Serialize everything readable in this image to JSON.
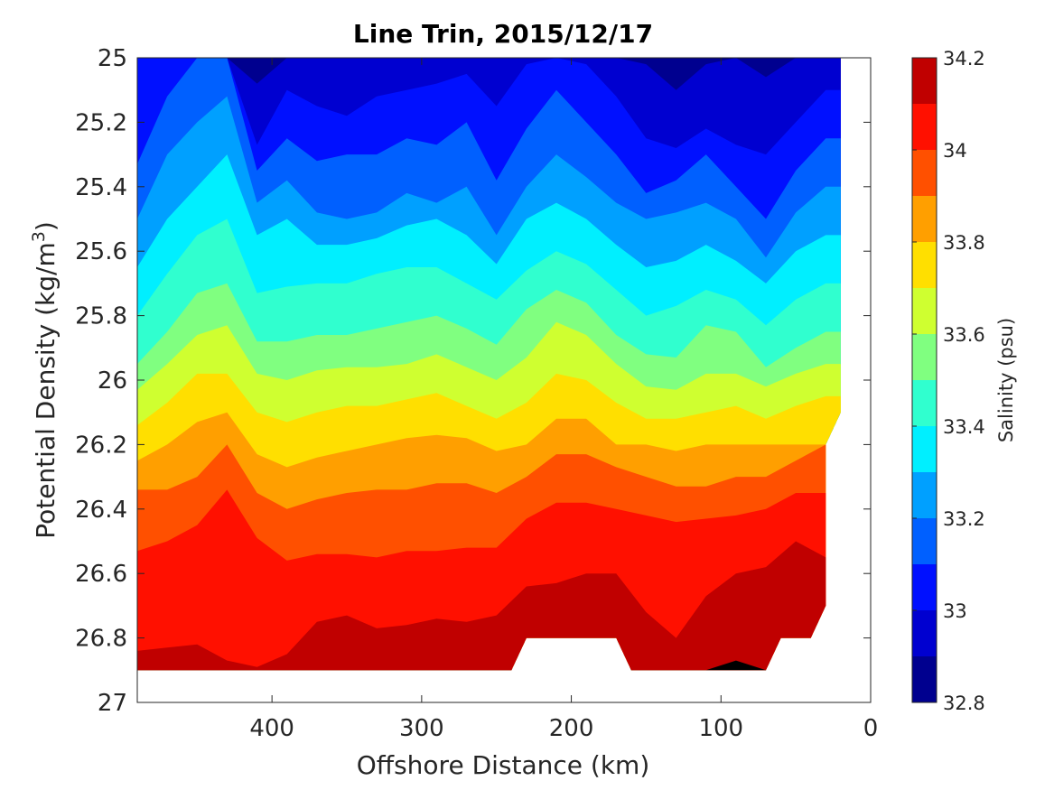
{
  "chart_data": {
    "type": "contour",
    "title": "Line Trin, 2015/12/17",
    "xlabel": "Offshore Distance (km)",
    "ylabel": "Potential Density (kg/m",
    "ylabel_sup": "3",
    "ylabel_close": ")",
    "x_reversed": true,
    "y_reversed": true,
    "xlim": [
      490,
      0
    ],
    "ylim": [
      25,
      27
    ],
    "xticks": [
      {
        "value": 400,
        "label": "400"
      },
      {
        "value": 300,
        "label": "300"
      },
      {
        "value": 200,
        "label": "200"
      },
      {
        "value": 100,
        "label": "100"
      },
      {
        "value": 0,
        "label": "0"
      }
    ],
    "yticks": [
      {
        "value": 25,
        "label": "25"
      },
      {
        "value": 25.2,
        "label": "25.2"
      },
      {
        "value": 25.4,
        "label": "25.4"
      },
      {
        "value": 25.6,
        "label": "25.6"
      },
      {
        "value": 25.8,
        "label": "25.8"
      },
      {
        "value": 26,
        "label": "26"
      },
      {
        "value": 26.2,
        "label": "26.2"
      },
      {
        "value": 26.4,
        "label": "26.4"
      },
      {
        "value": 26.6,
        "label": "26.6"
      },
      {
        "value": 26.8,
        "label": "26.8"
      },
      {
        "value": 27,
        "label": "27"
      }
    ],
    "colorbar": {
      "label": "Salinity (psu)",
      "range": [
        32.8,
        34.2
      ],
      "levels": [
        32.8,
        32.9,
        33.0,
        33.1,
        33.2,
        33.3,
        33.4,
        33.5,
        33.6,
        33.7,
        33.8,
        33.9,
        34.0,
        34.1,
        34.2
      ],
      "colors": [
        "#00008f",
        "#0000d0",
        "#0010ff",
        "#0060ff",
        "#00a0ff",
        "#00efff",
        "#30ffcf",
        "#80ff80",
        "#cfff30",
        "#ffdf00",
        "#ff9f00",
        "#ff5000",
        "#ff1000",
        "#c00000"
      ],
      "tick_labels": [
        {
          "value": 32.8,
          "label": "32.8"
        },
        {
          "value": 33.0,
          "label": "33"
        },
        {
          "value": 33.2,
          "label": "33.2"
        },
        {
          "value": 33.4,
          "label": "33.4"
        },
        {
          "value": 33.6,
          "label": "33.6"
        },
        {
          "value": 33.8,
          "label": "33.8"
        },
        {
          "value": 34.0,
          "label": "34"
        },
        {
          "value": 34.2,
          "label": "34.2"
        }
      ]
    },
    "data_extent": {
      "x_max": 490,
      "x_min": 20,
      "bottom": [
        [
          490,
          26.9
        ],
        [
          240,
          26.9
        ],
        [
          230,
          26.8
        ],
        [
          170,
          26.8
        ],
        [
          160,
          26.9
        ],
        [
          70,
          26.9
        ],
        [
          60,
          26.8
        ],
        [
          40,
          26.8
        ],
        [
          30,
          26.7
        ],
        [
          30,
          26.2
        ],
        [
          20,
          26.1
        ],
        [
          20,
          25.0
        ]
      ]
    },
    "x_nodes": [
      490,
      470,
      450,
      430,
      410,
      390,
      370,
      350,
      330,
      310,
      290,
      270,
      250,
      230,
      210,
      190,
      170,
      150,
      130,
      110,
      90,
      70,
      50,
      30,
      20
    ],
    "contours": [
      {
        "level": 32.9,
        "y": [
          25.0,
          25.0,
          25.0,
          25.0,
          25.08,
          25.0,
          25.0,
          25.0,
          25.0,
          25.0,
          25.0,
          25.0,
          25.0,
          25.0,
          25.0,
          25.0,
          25.0,
          25.02,
          25.1,
          25.02,
          25.0,
          25.06,
          25.0,
          25.0,
          25.0
        ]
      },
      {
        "level": 33.0,
        "y": [
          25.0,
          25.0,
          25.0,
          25.0,
          25.27,
          25.1,
          25.15,
          25.18,
          25.12,
          25.1,
          25.08,
          25.05,
          25.15,
          25.02,
          25.0,
          25.02,
          25.12,
          25.25,
          25.28,
          25.22,
          25.27,
          25.3,
          25.2,
          25.1,
          25.1
        ]
      },
      {
        "level": 33.1,
        "y": [
          25.33,
          25.12,
          25.0,
          25.0,
          25.35,
          25.25,
          25.32,
          25.3,
          25.3,
          25.25,
          25.27,
          25.2,
          25.38,
          25.22,
          25.1,
          25.2,
          25.3,
          25.42,
          25.38,
          25.3,
          25.4,
          25.5,
          25.35,
          25.25,
          25.25
        ]
      },
      {
        "level": 33.2,
        "y": [
          25.5,
          25.3,
          25.2,
          25.12,
          25.45,
          25.38,
          25.48,
          25.5,
          25.48,
          25.42,
          25.45,
          25.4,
          25.55,
          25.4,
          25.3,
          25.37,
          25.45,
          25.5,
          25.48,
          25.45,
          25.5,
          25.62,
          25.48,
          25.4,
          25.4
        ]
      },
      {
        "level": 33.3,
        "y": [
          25.65,
          25.5,
          25.4,
          25.3,
          25.55,
          25.5,
          25.58,
          25.58,
          25.56,
          25.52,
          25.5,
          25.55,
          25.64,
          25.5,
          25.45,
          25.5,
          25.58,
          25.65,
          25.63,
          25.58,
          25.63,
          25.7,
          25.6,
          25.55,
          25.55
        ]
      },
      {
        "level": 33.4,
        "y": [
          25.8,
          25.67,
          25.55,
          25.5,
          25.73,
          25.71,
          25.7,
          25.7,
          25.67,
          25.65,
          25.65,
          25.7,
          25.75,
          25.66,
          25.6,
          25.64,
          25.72,
          25.8,
          25.77,
          25.72,
          25.75,
          25.83,
          25.75,
          25.7,
          25.7
        ]
      },
      {
        "level": 33.5,
        "y": [
          25.95,
          25.85,
          25.73,
          25.7,
          25.88,
          25.88,
          25.86,
          25.86,
          25.84,
          25.82,
          25.8,
          25.84,
          25.89,
          25.78,
          25.72,
          25.76,
          25.86,
          25.92,
          25.93,
          25.83,
          25.85,
          25.96,
          25.9,
          25.85,
          25.85
        ]
      },
      {
        "level": 33.6,
        "y": [
          26.03,
          25.95,
          25.86,
          25.83,
          25.98,
          26.0,
          25.97,
          25.96,
          25.96,
          25.95,
          25.92,
          25.96,
          26.0,
          25.93,
          25.82,
          25.86,
          25.95,
          26.02,
          26.03,
          25.98,
          25.98,
          26.02,
          25.98,
          25.95,
          25.95
        ]
      },
      {
        "level": 33.7,
        "y": [
          26.14,
          26.07,
          25.98,
          25.98,
          26.1,
          26.13,
          26.1,
          26.08,
          26.08,
          26.06,
          26.04,
          26.08,
          26.12,
          26.07,
          25.98,
          26.0,
          26.07,
          26.12,
          26.12,
          26.1,
          26.08,
          26.12,
          26.08,
          26.05,
          26.05
        ]
      },
      {
        "level": 33.8,
        "y": [
          26.25,
          26.2,
          26.13,
          26.1,
          26.23,
          26.27,
          26.24,
          26.22,
          26.2,
          26.18,
          26.17,
          26.18,
          26.22,
          26.2,
          26.12,
          26.12,
          26.2,
          26.2,
          26.22,
          26.2,
          26.2,
          26.2,
          26.2,
          26.2,
          26.2
        ]
      },
      {
        "level": 33.9,
        "y": [
          26.34,
          26.34,
          26.3,
          26.2,
          26.35,
          26.4,
          26.37,
          26.35,
          26.34,
          26.34,
          26.32,
          26.32,
          26.35,
          26.3,
          26.23,
          26.23,
          26.27,
          26.3,
          26.33,
          26.33,
          26.3,
          26.3,
          26.25,
          26.2,
          26.2
        ]
      },
      {
        "level": 34.0,
        "y": [
          26.53,
          26.5,
          26.45,
          26.34,
          26.49,
          26.56,
          26.54,
          26.54,
          26.55,
          26.53,
          26.53,
          26.52,
          26.52,
          26.43,
          26.38,
          26.38,
          26.4,
          26.42,
          26.44,
          26.43,
          26.42,
          26.4,
          26.35,
          26.35,
          26.35
        ]
      },
      {
        "level": 34.1,
        "y": [
          26.84,
          26.83,
          26.82,
          26.87,
          26.89,
          26.85,
          26.75,
          26.73,
          26.77,
          26.76,
          26.74,
          26.75,
          26.73,
          26.64,
          26.63,
          26.6,
          26.6,
          26.72,
          26.8,
          26.67,
          26.6,
          26.58,
          26.5,
          26.55,
          26.55
        ]
      },
      {
        "level": 34.2,
        "y": [
          26.9,
          26.9,
          26.9,
          26.9,
          26.9,
          26.9,
          26.9,
          26.9,
          26.9,
          26.9,
          26.9,
          26.9,
          26.9,
          26.9,
          26.9,
          26.9,
          26.9,
          26.9,
          26.9,
          26.9,
          26.87,
          26.9,
          26.9,
          26.9,
          26.9
        ]
      }
    ]
  }
}
